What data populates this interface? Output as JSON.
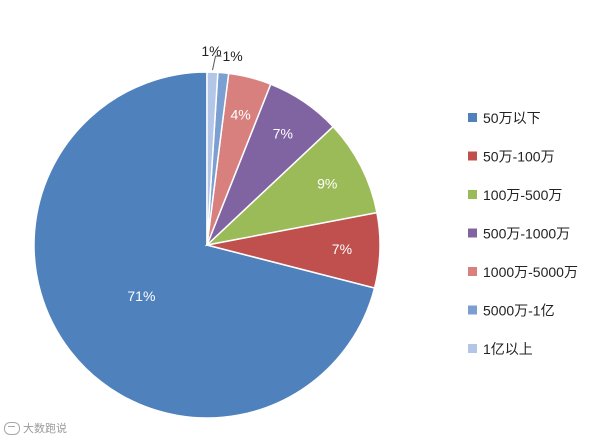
{
  "chart_data": {
    "type": "pie",
    "title": "",
    "categories": [
      "50万以下",
      "50万-100万",
      "100万-500万",
      "500万-1000万",
      "1000万-5000万",
      "5000万-1亿",
      "1亿以上"
    ],
    "values": [
      71,
      7,
      9,
      7,
      4,
      1,
      1
    ],
    "labels": [
      "71%",
      "7%",
      "9%",
      "7%",
      "4%",
      "1%",
      "1%"
    ],
    "colors": [
      "#4f81bd",
      "#c0504d",
      "#9bbb59",
      "#8064a2",
      "#d8807e",
      "#7b9fd0",
      "#b4c6e7"
    ],
    "start_angle_deg": 0,
    "direction": "counterclockwise",
    "legend_position": "right"
  },
  "watermark": {
    "text": "大数跑说"
  }
}
